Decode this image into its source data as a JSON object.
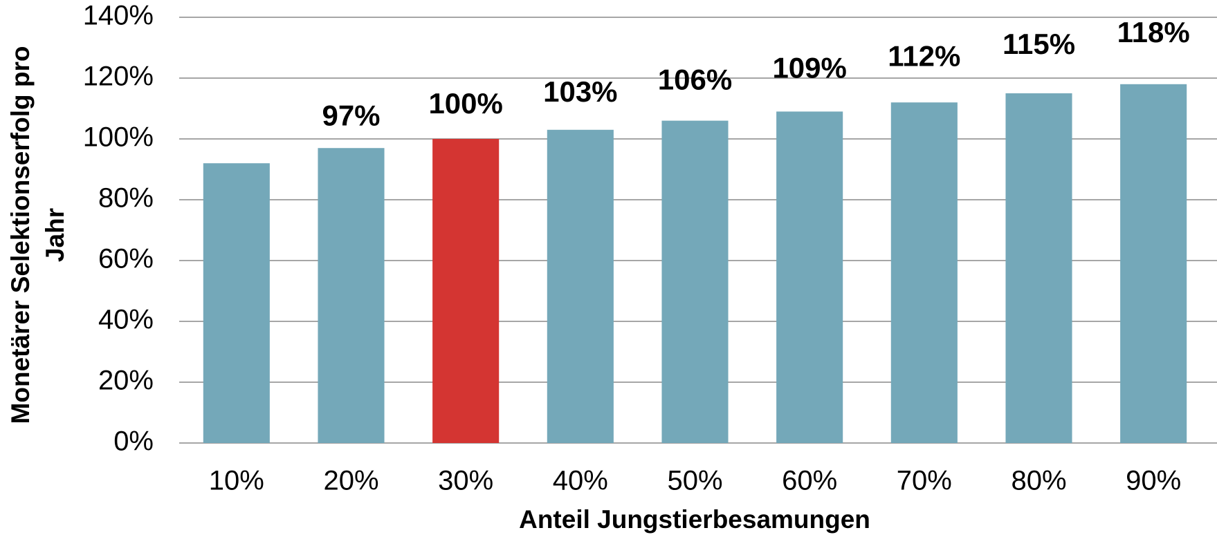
{
  "chart_data": {
    "type": "bar",
    "xlabel": "Anteil Jungstierbesamungen",
    "ylabel": [
      "Monetärer Selektionserfolg pro",
      "Jahr"
    ],
    "categories": [
      "10%",
      "20%",
      "30%",
      "40%",
      "50%",
      "60%",
      "70%",
      "80%",
      "90%"
    ],
    "values": [
      92,
      97,
      100,
      103,
      106,
      109,
      112,
      115,
      118
    ],
    "value_labels": [
      null,
      "97%",
      "100%",
      "103%",
      "106%",
      "109%",
      "112%",
      "115%",
      "118%"
    ],
    "colors": [
      "#74a8b9",
      "#74a8b9",
      "#d43532",
      "#74a8b9",
      "#74a8b9",
      "#74a8b9",
      "#74a8b9",
      "#74a8b9",
      "#74a8b9"
    ],
    "ylim": [
      0,
      140
    ],
    "yticks": [
      {
        "value": 0,
        "label": "0%"
      },
      {
        "value": 20,
        "label": "20%"
      },
      {
        "value": 40,
        "label": "40%"
      },
      {
        "value": 60,
        "label": "60%"
      },
      {
        "value": 80,
        "label": "80%"
      },
      {
        "value": 100,
        "label": "100%"
      },
      {
        "value": 120,
        "label": "120%"
      },
      {
        "value": 140,
        "label": "140%"
      }
    ],
    "grid": true
  }
}
